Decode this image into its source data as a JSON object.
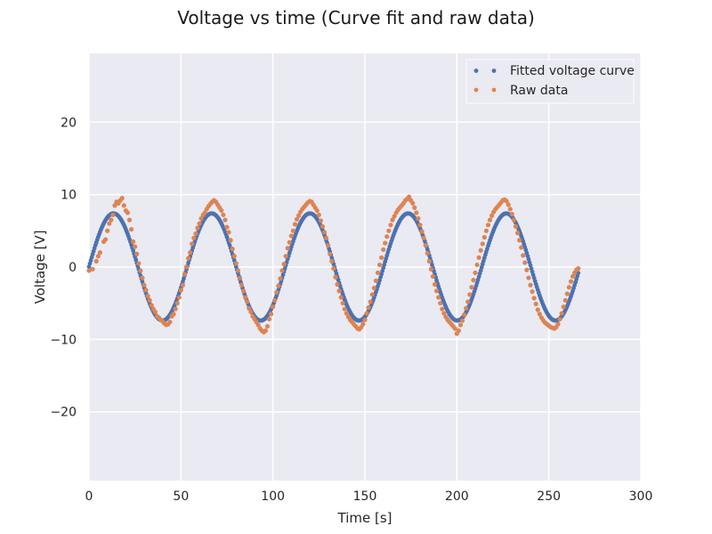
{
  "chart_data": {
    "type": "scatter",
    "title": "Voltage vs time (Curve fit and raw data)",
    "xlabel": "Time [s]",
    "ylabel": "Voltage [V]",
    "xlim": [
      0,
      300
    ],
    "ylim": [
      -29.5,
      29.5
    ],
    "xticks": [
      0,
      50,
      100,
      150,
      200,
      250,
      300
    ],
    "yticks": [
      -20,
      -10,
      0,
      10,
      20
    ],
    "xtick_labels": [
      "0",
      "50",
      "100",
      "150",
      "200",
      "250",
      "300"
    ],
    "ytick_labels": [
      "−20",
      "−10",
      "0",
      "10",
      "20"
    ],
    "grid": true,
    "legend_position": "top-right",
    "series": [
      {
        "name": "Fitted voltage curve",
        "color": "#4c72b0",
        "model": "sine",
        "amplitude": 7.4,
        "period": 53.4,
        "peak_time": 13.3,
        "x_range": [
          0,
          266
        ],
        "point_spacing": 0.5
      },
      {
        "name": "Raw data",
        "color": "#dd8452",
        "points": [
          [
            0,
            -0.5
          ],
          [
            2,
            -0.3
          ],
          [
            4,
            0.8
          ],
          [
            5,
            1.5
          ],
          [
            6,
            2.0
          ],
          [
            8,
            3.5
          ],
          [
            9,
            3.8
          ],
          [
            10,
            5.0
          ],
          [
            11,
            6.0
          ],
          [
            12,
            6.5
          ],
          [
            13,
            7.2
          ],
          [
            14,
            8.5
          ],
          [
            15,
            9.0
          ],
          [
            16,
            8.8
          ],
          [
            17,
            9.2
          ],
          [
            18,
            9.5
          ],
          [
            19,
            8.5
          ],
          [
            20,
            7.8
          ],
          [
            21,
            7.5
          ],
          [
            22,
            6.5
          ],
          [
            23,
            5.2
          ],
          [
            24,
            3.5
          ],
          [
            25,
            2.8
          ],
          [
            26,
            1.8
          ],
          [
            27,
            0.5
          ],
          [
            28,
            -0.5
          ],
          [
            29,
            -1.5
          ],
          [
            30,
            -2.5
          ],
          [
            31,
            -3.2
          ],
          [
            32,
            -4.0
          ],
          [
            33,
            -4.6
          ],
          [
            34,
            -5.3
          ],
          [
            35,
            -5.8
          ],
          [
            36,
            -6.2
          ],
          [
            37,
            -6.8
          ],
          [
            38,
            -7.0
          ],
          [
            39,
            -7.3
          ],
          [
            40,
            -7.5
          ],
          [
            41,
            -7.8
          ],
          [
            42,
            -8.0
          ],
          [
            43,
            -7.9
          ],
          [
            44,
            -7.6
          ],
          [
            45,
            -6.8
          ],
          [
            46,
            -6.5
          ],
          [
            47,
            -5.8
          ],
          [
            48,
            -5.0
          ],
          [
            49,
            -4.2
          ],
          [
            50,
            -3.2
          ],
          [
            51,
            -2.5
          ],
          [
            52,
            -1.0
          ],
          [
            53,
            0.0
          ],
          [
            54,
            1.2
          ],
          [
            55,
            2.0
          ],
          [
            56,
            3.2
          ],
          [
            57,
            4.0
          ],
          [
            58,
            4.6
          ],
          [
            59,
            5.4
          ],
          [
            60,
            6.0
          ],
          [
            61,
            6.7
          ],
          [
            62,
            7.2
          ],
          [
            63,
            7.5
          ],
          [
            64,
            8.0
          ],
          [
            65,
            8.4
          ],
          [
            66,
            8.7
          ],
          [
            67,
            9.0
          ],
          [
            68,
            9.2
          ],
          [
            69,
            9.0
          ],
          [
            70,
            8.6
          ],
          [
            71,
            8.2
          ],
          [
            72,
            7.8
          ],
          [
            73,
            7.2
          ],
          [
            74,
            6.5
          ],
          [
            75,
            5.5
          ],
          [
            76,
            4.8
          ],
          [
            77,
            3.7
          ],
          [
            78,
            2.5
          ],
          [
            79,
            1.5
          ],
          [
            80,
            0.5
          ],
          [
            81,
            -0.5
          ],
          [
            82,
            -1.5
          ],
          [
            83,
            -2.5
          ],
          [
            84,
            -3.3
          ],
          [
            85,
            -4.2
          ],
          [
            86,
            -4.8
          ],
          [
            87,
            -5.7
          ],
          [
            88,
            -6.2
          ],
          [
            89,
            -6.8
          ],
          [
            90,
            -7.2
          ],
          [
            91,
            -7.6
          ],
          [
            92,
            -8.0
          ],
          [
            93,
            -8.5
          ],
          [
            94,
            -8.8
          ],
          [
            95,
            -9.0
          ],
          [
            96,
            -8.8
          ],
          [
            97,
            -8.2
          ],
          [
            98,
            -7.2
          ],
          [
            99,
            -6.5
          ],
          [
            100,
            -5.5
          ],
          [
            101,
            -4.6
          ],
          [
            102,
            -3.5
          ],
          [
            103,
            -2.6
          ],
          [
            104,
            -1.6
          ],
          [
            105,
            -0.5
          ],
          [
            106,
            0.4
          ],
          [
            107,
            1.5
          ],
          [
            108,
            2.6
          ],
          [
            109,
            3.4
          ],
          [
            110,
            4.3
          ],
          [
            111,
            5.0
          ],
          [
            112,
            5.9
          ],
          [
            113,
            6.6
          ],
          [
            114,
            7.1
          ],
          [
            115,
            7.6
          ],
          [
            116,
            8.0
          ],
          [
            117,
            8.3
          ],
          [
            118,
            8.6
          ],
          [
            119,
            8.9
          ],
          [
            120,
            9.1
          ],
          [
            121,
            9.0
          ],
          [
            122,
            8.6
          ],
          [
            123,
            8.2
          ],
          [
            124,
            7.8
          ],
          [
            125,
            7.2
          ],
          [
            126,
            6.4
          ],
          [
            127,
            5.6
          ],
          [
            128,
            4.8
          ],
          [
            129,
            4.0
          ],
          [
            130,
            3.0
          ],
          [
            131,
            1.8
          ],
          [
            132,
            0.8
          ],
          [
            133,
            -0.2
          ],
          [
            134,
            -1.4
          ],
          [
            135,
            -2.4
          ],
          [
            136,
            -3.3
          ],
          [
            137,
            -4.2
          ],
          [
            138,
            -5.0
          ],
          [
            139,
            -5.8
          ],
          [
            140,
            -6.4
          ],
          [
            141,
            -6.9
          ],
          [
            142,
            -7.3
          ],
          [
            143,
            -7.6
          ],
          [
            144,
            -7.9
          ],
          [
            145,
            -8.2
          ],
          [
            146,
            -8.5
          ],
          [
            147,
            -8.6
          ],
          [
            148,
            -8.3
          ],
          [
            149,
            -7.9
          ],
          [
            150,
            -7.3
          ],
          [
            151,
            -6.4
          ],
          [
            152,
            -5.6
          ],
          [
            153,
            -4.8
          ],
          [
            154,
            -3.8
          ],
          [
            155,
            -2.9
          ],
          [
            156,
            -1.9
          ],
          [
            157,
            -0.8
          ],
          [
            158,
            0.3
          ],
          [
            159,
            1.3
          ],
          [
            160,
            2.4
          ],
          [
            161,
            3.3
          ],
          [
            162,
            4.2
          ],
          [
            163,
            5.0
          ],
          [
            164,
            5.8
          ],
          [
            165,
            6.5
          ],
          [
            166,
            7.0
          ],
          [
            167,
            7.5
          ],
          [
            168,
            7.9
          ],
          [
            169,
            8.2
          ],
          [
            170,
            8.5
          ],
          [
            171,
            8.8
          ],
          [
            172,
            9.2
          ],
          [
            173,
            9.4
          ],
          [
            174,
            9.7
          ],
          [
            175,
            9.2
          ],
          [
            176,
            8.8
          ],
          [
            177,
            8.2
          ],
          [
            178,
            7.5
          ],
          [
            179,
            6.7
          ],
          [
            180,
            5.8
          ],
          [
            181,
            4.9
          ],
          [
            182,
            4.0
          ],
          [
            183,
            3.0
          ],
          [
            184,
            1.9
          ],
          [
            185,
            0.8
          ],
          [
            186,
            -0.3
          ],
          [
            187,
            -1.3
          ],
          [
            188,
            -2.4
          ],
          [
            189,
            -3.3
          ],
          [
            190,
            -4.2
          ],
          [
            191,
            -5.0
          ],
          [
            192,
            -5.8
          ],
          [
            193,
            -6.4
          ],
          [
            194,
            -6.9
          ],
          [
            195,
            -7.3
          ],
          [
            196,
            -7.6
          ],
          [
            197,
            -7.9
          ],
          [
            198,
            -8.2
          ],
          [
            199,
            -8.5
          ],
          [
            200,
            -9.2
          ],
          [
            201,
            -8.8
          ],
          [
            202,
            -8.0
          ],
          [
            203,
            -7.4
          ],
          [
            204,
            -6.6
          ],
          [
            205,
            -5.7
          ],
          [
            206,
            -4.8
          ],
          [
            207,
            -3.8
          ],
          [
            208,
            -2.8
          ],
          [
            209,
            -1.8
          ],
          [
            210,
            -0.8
          ],
          [
            211,
            0.3
          ],
          [
            212,
            1.3
          ],
          [
            213,
            2.3
          ],
          [
            214,
            3.2
          ],
          [
            215,
            4.1
          ],
          [
            216,
            5.0
          ],
          [
            217,
            5.8
          ],
          [
            218,
            6.5
          ],
          [
            219,
            7.1
          ],
          [
            220,
            7.6
          ],
          [
            221,
            8.0
          ],
          [
            222,
            8.3
          ],
          [
            223,
            8.6
          ],
          [
            224,
            8.9
          ],
          [
            225,
            9.2
          ],
          [
            226,
            9.3
          ],
          [
            227,
            9.1
          ],
          [
            228,
            8.6
          ],
          [
            229,
            8.0
          ],
          [
            230,
            7.3
          ],
          [
            231,
            6.5
          ],
          [
            232,
            5.6
          ],
          [
            233,
            4.7
          ],
          [
            234,
            3.7
          ],
          [
            235,
            2.7
          ],
          [
            236,
            1.6
          ],
          [
            237,
            0.6
          ],
          [
            238,
            -0.4
          ],
          [
            239,
            -1.5
          ],
          [
            240,
            -2.5
          ],
          [
            241,
            -3.4
          ],
          [
            242,
            -4.3
          ],
          [
            243,
            -5.1
          ],
          [
            244,
            -5.9
          ],
          [
            245,
            -6.5
          ],
          [
            246,
            -7.0
          ],
          [
            247,
            -7.4
          ],
          [
            248,
            -7.7
          ],
          [
            249,
            -7.9
          ],
          [
            250,
            -8.1
          ],
          [
            251,
            -8.3
          ],
          [
            252,
            -8.4
          ],
          [
            253,
            -8.5
          ],
          [
            254,
            -8.3
          ],
          [
            255,
            -7.9
          ],
          [
            256,
            -7.2
          ],
          [
            257,
            -6.4
          ],
          [
            258,
            -5.5
          ],
          [
            259,
            -4.6
          ],
          [
            260,
            -3.7
          ],
          [
            261,
            -2.8
          ],
          [
            262,
            -2.0
          ],
          [
            263,
            -1.3
          ],
          [
            264,
            -0.8
          ],
          [
            265,
            -0.4
          ],
          [
            266,
            -0.2
          ]
        ]
      }
    ]
  }
}
